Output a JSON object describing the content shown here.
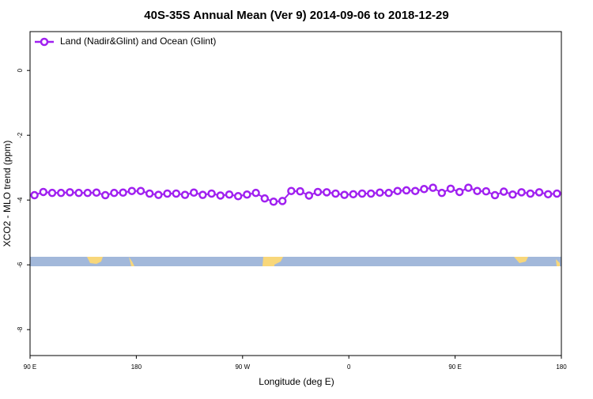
{
  "chart_data": {
    "type": "line",
    "title": "40S-35S Annual Mean (Ver 9)   2014-09-06 to 2018-12-29",
    "x_label": "Longitude (deg E)",
    "y_label": "XCO2 - MLO trend (ppm)",
    "x": [
      93.75,
      101.25,
      108.75,
      116.25,
      123.75,
      131.25,
      138.75,
      146.25,
      153.75,
      161.25,
      168.75,
      176.25,
      183.75,
      191.25,
      198.75,
      206.25,
      213.75,
      221.25,
      228.75,
      236.25,
      243.75,
      251.25,
      258.75,
      266.25,
      273.75,
      281.25,
      288.75,
      296.25,
      303.75,
      311.25,
      318.75,
      326.25,
      333.75,
      341.25,
      348.75,
      356.25,
      363.75,
      371.25,
      378.75,
      386.25,
      393.75,
      401.25,
      408.75,
      416.25,
      423.75,
      431.25,
      438.75,
      446.25,
      453.75,
      461.25,
      468.75,
      476.25,
      483.75,
      491.25,
      498.75,
      506.25,
      513.75,
      521.25,
      528.75,
      536.25
    ],
    "series": [
      {
        "name": "Land (Nadir&Glint) and Ocean (Glint)",
        "color": "#a020f0",
        "values": [
          -3.85,
          -3.75,
          -3.78,
          -3.78,
          -3.76,
          -3.78,
          -3.78,
          -3.77,
          -3.85,
          -3.78,
          -3.77,
          -3.72,
          -3.72,
          -3.8,
          -3.84,
          -3.8,
          -3.8,
          -3.84,
          -3.77,
          -3.84,
          -3.8,
          -3.86,
          -3.83,
          -3.88,
          -3.83,
          -3.78,
          -3.95,
          -4.05,
          -4.03,
          -3.72,
          -3.73,
          -3.86,
          -3.75,
          -3.76,
          -3.8,
          -3.84,
          -3.82,
          -3.8,
          -3.8,
          -3.77,
          -3.78,
          -3.72,
          -3.7,
          -3.72,
          -3.66,
          -3.62,
          -3.78,
          -3.65,
          -3.75,
          -3.62,
          -3.72,
          -3.73,
          -3.85,
          -3.74,
          -3.83,
          -3.76,
          -3.8,
          -3.76,
          -3.82,
          -3.8
        ]
      }
    ],
    "xlim": [
      90,
      540
    ],
    "xticks": [
      {
        "value": 90,
        "label": "90 E"
      },
      180,
      {
        "value": 270,
        "label": "90 W"
      },
      {
        "value": 360,
        "label": "0"
      },
      {
        "value": 450,
        "label": "90 E"
      },
      {
        "value": 540,
        "label": "180"
      }
    ],
    "ylim": [
      -8.8,
      1.2
    ],
    "yticks": [
      0,
      -2,
      -4,
      -6,
      -8
    ],
    "legend": "top-left"
  }
}
